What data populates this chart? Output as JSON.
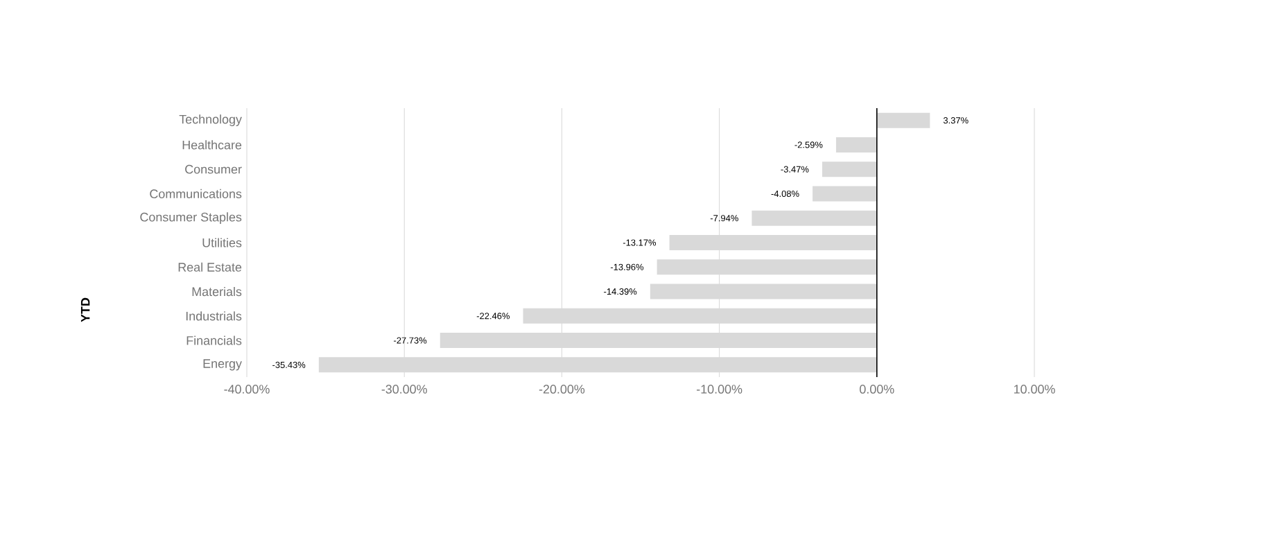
{
  "chart_data": {
    "type": "bar",
    "orientation": "horizontal",
    "ylabel": "YTD",
    "categories": [
      "Technology",
      "Healthcare",
      "Consumer",
      "Communications",
      "Consumer Staples",
      "Utilities",
      "Real Estate",
      "Materials",
      "Industrials",
      "Financials",
      "Energy"
    ],
    "values": [
      3.37,
      -2.59,
      -3.47,
      -4.08,
      -7.94,
      -13.17,
      -13.96,
      -14.39,
      -22.46,
      -27.73,
      -35.43
    ],
    "value_labels": [
      "3.37%",
      "-2.59%",
      "-3.47%",
      "-4.08%",
      "-7.94%",
      "-13.17%",
      "-13.96%",
      "-14.39%",
      "-22.46%",
      "-27.73%",
      "-35.43%"
    ],
    "color": "#d9d9d9",
    "xlim": [
      -40,
      10
    ],
    "xticks": [
      {
        "value": -40,
        "label": "-40.00%"
      },
      {
        "value": -30,
        "label": "-30.00%"
      },
      {
        "value": -20,
        "label": "-20.00%"
      },
      {
        "value": -10,
        "label": "-10.00%"
      },
      {
        "value": 0,
        "label": "0.00%"
      },
      {
        "value": 10,
        "label": "10.00%"
      }
    ],
    "grid": "x"
  }
}
